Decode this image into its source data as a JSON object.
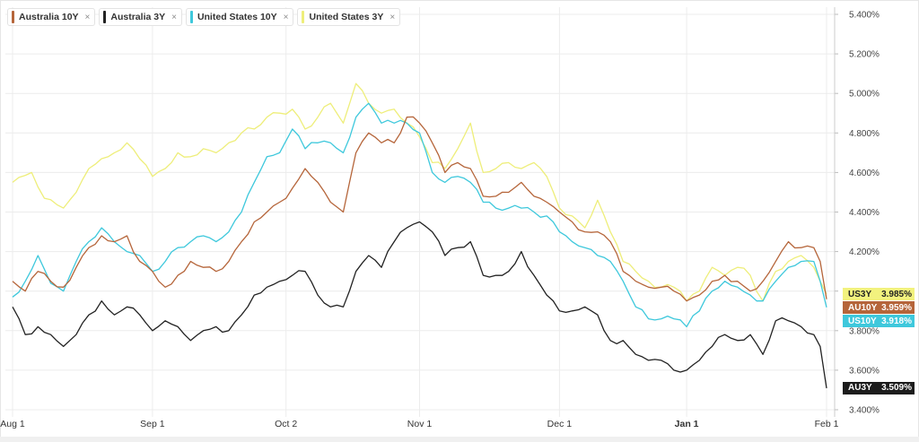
{
  "legend": [
    {
      "label": "Australia 10Y",
      "color": "#b5653a",
      "close": "×"
    },
    {
      "label": "Australia 3Y",
      "color": "#222222",
      "close": "×"
    },
    {
      "label": "United States 10Y",
      "color": "#3ec8dc",
      "close": "×"
    },
    {
      "label": "United States 3Y",
      "color": "#eeee7a",
      "close": "×"
    }
  ],
  "badges": [
    {
      "name": "US3Y",
      "value": "3.985%",
      "bg": "#f2f27e",
      "fg": "#222222",
      "y": 3.985
    },
    {
      "name": "AU10Y",
      "value": "3.959%",
      "bg": "#b5653a",
      "fg": "#ffffff",
      "y": 3.959
    },
    {
      "name": "US10Y",
      "value": "3.918%",
      "bg": "#3ec8dc",
      "fg": "#ffffff",
      "y": 3.918
    },
    {
      "name": "AU3Y",
      "value": "3.509%",
      "bg": "#1c1c1c",
      "fg": "#ffffff",
      "y": 3.509
    }
  ],
  "chart_data": {
    "type": "line",
    "y_ticks": [
      "5.400%",
      "5.200%",
      "5.000%",
      "4.800%",
      "4.600%",
      "4.400%",
      "4.200%",
      "4.000%",
      "3.800%",
      "3.600%",
      "3.400%"
    ],
    "x_ticks": [
      {
        "label": "Aug 1",
        "i": 0,
        "bold": false
      },
      {
        "label": "Sep 1",
        "i": 22,
        "bold": false
      },
      {
        "label": "Oct 2",
        "i": 43,
        "bold": false
      },
      {
        "label": "Nov 1",
        "i": 64,
        "bold": false
      },
      {
        "label": "Dec 1",
        "i": 86,
        "bold": false
      },
      {
        "label": "Jan 1",
        "i": 106,
        "bold": true
      },
      {
        "label": "Feb 1",
        "i": 128,
        "bold": false
      }
    ],
    "ylim": [
      3.4,
      5.45
    ],
    "n_points": 129,
    "grid": true,
    "series": [
      {
        "name": "United States 3Y",
        "color": "#eeee7a",
        "values": [
          [
            0,
            4.55
          ],
          [
            3,
            4.6
          ],
          [
            5,
            4.47
          ],
          [
            8,
            4.42
          ],
          [
            10,
            4.5
          ],
          [
            12,
            4.62
          ],
          [
            14,
            4.67
          ],
          [
            16,
            4.7
          ],
          [
            18,
            4.75
          ],
          [
            20,
            4.67
          ],
          [
            22,
            4.58
          ],
          [
            24,
            4.62
          ],
          [
            26,
            4.7
          ],
          [
            28,
            4.68
          ],
          [
            30,
            4.72
          ],
          [
            32,
            4.7
          ],
          [
            34,
            4.75
          ],
          [
            36,
            4.8
          ],
          [
            38,
            4.82
          ],
          [
            40,
            4.88
          ],
          [
            42,
            4.9
          ],
          [
            44,
            4.92
          ],
          [
            46,
            4.82
          ],
          [
            48,
            4.88
          ],
          [
            50,
            4.95
          ],
          [
            52,
            4.85
          ],
          [
            54,
            5.05
          ],
          [
            56,
            4.95
          ],
          [
            58,
            4.9
          ],
          [
            60,
            4.92
          ],
          [
            62,
            4.85
          ],
          [
            64,
            4.78
          ],
          [
            66,
            4.65
          ],
          [
            68,
            4.62
          ],
          [
            70,
            4.72
          ],
          [
            72,
            4.85
          ],
          [
            74,
            4.6
          ],
          [
            76,
            4.62
          ],
          [
            78,
            4.65
          ],
          [
            80,
            4.62
          ],
          [
            82,
            4.65
          ],
          [
            84,
            4.58
          ],
          [
            86,
            4.42
          ],
          [
            88,
            4.38
          ],
          [
            90,
            4.32
          ],
          [
            92,
            4.46
          ],
          [
            94,
            4.3
          ],
          [
            96,
            4.15
          ],
          [
            98,
            4.1
          ],
          [
            100,
            4.05
          ],
          [
            102,
            4.02
          ],
          [
            104,
            4.02
          ],
          [
            106,
            3.95
          ],
          [
            108,
            4.0
          ],
          [
            110,
            4.12
          ],
          [
            112,
            4.08
          ],
          [
            114,
            4.12
          ],
          [
            116,
            4.08
          ],
          [
            118,
            3.95
          ],
          [
            120,
            4.1
          ],
          [
            122,
            4.15
          ],
          [
            124,
            4.18
          ],
          [
            126,
            4.12
          ],
          [
            127,
            4.05
          ],
          [
            128,
            3.985
          ]
        ]
      },
      {
        "name": "United States 10Y",
        "color": "#3ec8dc",
        "values": [
          [
            0,
            3.97
          ],
          [
            2,
            4.05
          ],
          [
            4,
            4.18
          ],
          [
            6,
            4.04
          ],
          [
            8,
            4.0
          ],
          [
            10,
            4.15
          ],
          [
            12,
            4.25
          ],
          [
            14,
            4.32
          ],
          [
            16,
            4.25
          ],
          [
            18,
            4.2
          ],
          [
            20,
            4.18
          ],
          [
            22,
            4.1
          ],
          [
            24,
            4.15
          ],
          [
            26,
            4.22
          ],
          [
            28,
            4.25
          ],
          [
            30,
            4.28
          ],
          [
            32,
            4.25
          ],
          [
            34,
            4.3
          ],
          [
            36,
            4.4
          ],
          [
            38,
            4.55
          ],
          [
            40,
            4.68
          ],
          [
            42,
            4.7
          ],
          [
            44,
            4.82
          ],
          [
            46,
            4.72
          ],
          [
            48,
            4.75
          ],
          [
            50,
            4.75
          ],
          [
            52,
            4.7
          ],
          [
            54,
            4.88
          ],
          [
            56,
            4.95
          ],
          [
            58,
            4.85
          ],
          [
            60,
            4.85
          ],
          [
            62,
            4.85
          ],
          [
            64,
            4.8
          ],
          [
            66,
            4.6
          ],
          [
            68,
            4.55
          ],
          [
            70,
            4.58
          ],
          [
            72,
            4.55
          ],
          [
            74,
            4.45
          ],
          [
            76,
            4.42
          ],
          [
            78,
            4.42
          ],
          [
            80,
            4.42
          ],
          [
            82,
            4.4
          ],
          [
            84,
            4.38
          ],
          [
            86,
            4.3
          ],
          [
            88,
            4.25
          ],
          [
            90,
            4.22
          ],
          [
            92,
            4.18
          ],
          [
            94,
            4.15
          ],
          [
            96,
            4.05
          ],
          [
            98,
            3.92
          ],
          [
            100,
            3.86
          ],
          [
            102,
            3.86
          ],
          [
            104,
            3.86
          ],
          [
            106,
            3.82
          ],
          [
            108,
            3.9
          ],
          [
            110,
            4.0
          ],
          [
            112,
            4.05
          ],
          [
            114,
            4.02
          ],
          [
            116,
            3.98
          ],
          [
            118,
            3.95
          ],
          [
            120,
            4.05
          ],
          [
            122,
            4.12
          ],
          [
            124,
            4.15
          ],
          [
            126,
            4.15
          ],
          [
            127,
            4.05
          ],
          [
            128,
            3.918
          ]
        ]
      },
      {
        "name": "Australia 10Y",
        "color": "#b5653a",
        "values": [
          [
            0,
            4.05
          ],
          [
            2,
            4.0
          ],
          [
            4,
            4.1
          ],
          [
            6,
            4.05
          ],
          [
            8,
            4.02
          ],
          [
            10,
            4.12
          ],
          [
            12,
            4.22
          ],
          [
            14,
            4.28
          ],
          [
            16,
            4.25
          ],
          [
            18,
            4.28
          ],
          [
            20,
            4.15
          ],
          [
            22,
            4.1
          ],
          [
            24,
            4.02
          ],
          [
            26,
            4.08
          ],
          [
            28,
            4.15
          ],
          [
            30,
            4.12
          ],
          [
            32,
            4.1
          ],
          [
            34,
            4.15
          ],
          [
            36,
            4.25
          ],
          [
            38,
            4.35
          ],
          [
            40,
            4.4
          ],
          [
            42,
            4.45
          ],
          [
            44,
            4.52
          ],
          [
            46,
            4.62
          ],
          [
            48,
            4.55
          ],
          [
            50,
            4.45
          ],
          [
            52,
            4.4
          ],
          [
            54,
            4.7
          ],
          [
            56,
            4.8
          ],
          [
            58,
            4.75
          ],
          [
            60,
            4.75
          ],
          [
            62,
            4.88
          ],
          [
            64,
            4.85
          ],
          [
            66,
            4.75
          ],
          [
            68,
            4.6
          ],
          [
            70,
            4.65
          ],
          [
            72,
            4.62
          ],
          [
            74,
            4.48
          ],
          [
            76,
            4.48
          ],
          [
            78,
            4.5
          ],
          [
            80,
            4.55
          ],
          [
            82,
            4.48
          ],
          [
            84,
            4.45
          ],
          [
            86,
            4.4
          ],
          [
            88,
            4.35
          ],
          [
            90,
            4.3
          ],
          [
            92,
            4.3
          ],
          [
            94,
            4.25
          ],
          [
            96,
            4.1
          ],
          [
            98,
            4.05
          ],
          [
            100,
            4.02
          ],
          [
            102,
            4.02
          ],
          [
            104,
            4.0
          ],
          [
            106,
            3.95
          ],
          [
            108,
            3.98
          ],
          [
            110,
            4.05
          ],
          [
            112,
            4.08
          ],
          [
            114,
            4.05
          ],
          [
            116,
            4.0
          ],
          [
            118,
            4.05
          ],
          [
            120,
            4.15
          ],
          [
            122,
            4.25
          ],
          [
            124,
            4.22
          ],
          [
            126,
            4.22
          ],
          [
            127,
            4.15
          ],
          [
            128,
            3.959
          ]
        ]
      },
      {
        "name": "Australia 3Y",
        "color": "#222222",
        "values": [
          [
            0,
            3.92
          ],
          [
            2,
            3.78
          ],
          [
            4,
            3.82
          ],
          [
            6,
            3.78
          ],
          [
            8,
            3.72
          ],
          [
            10,
            3.78
          ],
          [
            12,
            3.88
          ],
          [
            14,
            3.95
          ],
          [
            16,
            3.88
          ],
          [
            18,
            3.92
          ],
          [
            20,
            3.88
          ],
          [
            22,
            3.8
          ],
          [
            24,
            3.85
          ],
          [
            26,
            3.82
          ],
          [
            28,
            3.75
          ],
          [
            30,
            3.8
          ],
          [
            32,
            3.82
          ],
          [
            34,
            3.8
          ],
          [
            36,
            3.88
          ],
          [
            38,
            3.98
          ],
          [
            40,
            4.02
          ],
          [
            42,
            4.05
          ],
          [
            44,
            4.08
          ],
          [
            46,
            4.1
          ],
          [
            48,
            3.98
          ],
          [
            50,
            3.92
          ],
          [
            52,
            3.92
          ],
          [
            54,
            4.1
          ],
          [
            56,
            4.18
          ],
          [
            58,
            4.12
          ],
          [
            60,
            4.25
          ],
          [
            62,
            4.32
          ],
          [
            64,
            4.35
          ],
          [
            66,
            4.3
          ],
          [
            68,
            4.18
          ],
          [
            70,
            4.22
          ],
          [
            72,
            4.25
          ],
          [
            74,
            4.08
          ],
          [
            76,
            4.08
          ],
          [
            78,
            4.1
          ],
          [
            80,
            4.2
          ],
          [
            82,
            4.08
          ],
          [
            84,
            3.98
          ],
          [
            86,
            3.9
          ],
          [
            88,
            3.9
          ],
          [
            90,
            3.92
          ],
          [
            92,
            3.88
          ],
          [
            94,
            3.75
          ],
          [
            96,
            3.75
          ],
          [
            98,
            3.68
          ],
          [
            100,
            3.65
          ],
          [
            102,
            3.65
          ],
          [
            104,
            3.6
          ],
          [
            106,
            3.6
          ],
          [
            108,
            3.65
          ],
          [
            110,
            3.72
          ],
          [
            112,
            3.78
          ],
          [
            114,
            3.75
          ],
          [
            116,
            3.78
          ],
          [
            118,
            3.68
          ],
          [
            120,
            3.85
          ],
          [
            122,
            3.85
          ],
          [
            124,
            3.82
          ],
          [
            126,
            3.78
          ],
          [
            127,
            3.72
          ],
          [
            128,
            3.509
          ]
        ]
      }
    ]
  }
}
